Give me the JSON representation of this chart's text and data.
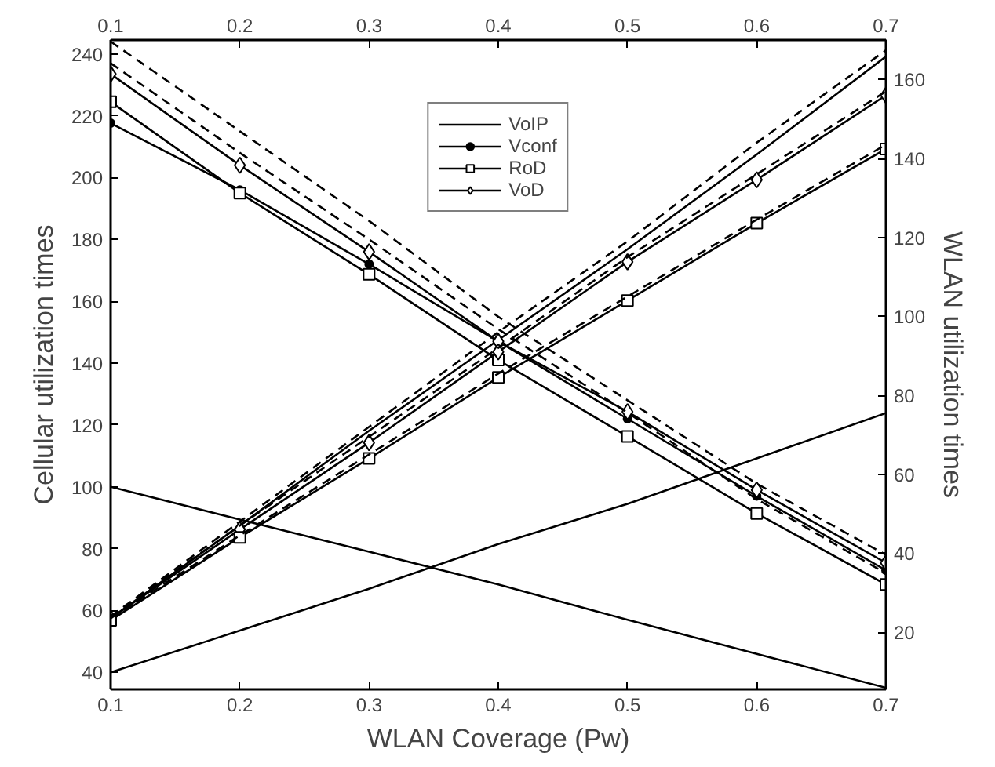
{
  "chart_data": {
    "type": "line",
    "xlabel": "WLAN Coverage (Pw)",
    "ylabel": "Cellular utilization times",
    "y2label": "WLAN utilization times",
    "x": [
      0.1,
      0.2,
      0.3,
      0.4,
      0.5,
      0.6,
      0.7
    ],
    "xlim": [
      0.1,
      0.7
    ],
    "xticks": [
      0.1,
      0.2,
      0.3,
      0.4,
      0.5,
      0.6,
      0.7
    ],
    "x2lim": [
      0.1,
      0.7
    ],
    "x2ticks": [
      0.1,
      0.2,
      0.3,
      0.4,
      0.5,
      0.6,
      0.7
    ],
    "ylim": [
      34.5,
      244.5
    ],
    "yticks": [
      40,
      60,
      80,
      100,
      120,
      140,
      160,
      180,
      200,
      220,
      240
    ],
    "y2lim": [
      5.5,
      170
    ],
    "y2ticks": [
      20,
      40,
      60,
      80,
      100,
      120,
      140,
      160
    ],
    "grid": false,
    "legend": "top",
    "series": [
      {
        "name": "VoIP",
        "color": "#000000",
        "marker": "none",
        "line_style": "solid",
        "axis": "y2",
        "values": [
          23.5,
          47,
          71,
          94,
          117,
          141,
          165.8
        ]
      },
      {
        "name": "Vconf",
        "color": "#000000",
        "marker": "circle",
        "line_style": "solid",
        "values": [
          217.6,
          196,
          172,
          147,
          122,
          97,
          73
        ]
      },
      {
        "name": "RoD",
        "color": "#000000",
        "marker": "square",
        "line_style": "solid",
        "values": [
          224.5,
          195,
          168.7,
          141,
          116.3,
          91.4,
          68.4
        ]
      },
      {
        "name": "VoD",
        "color": "#000000",
        "marker": "diamond",
        "line_style": "solid",
        "values": [
          233.5,
          204,
          176,
          147,
          124.3,
          99,
          75.4
        ]
      },
      {
        "color": "#000000",
        "marker": "none",
        "line_style": "solid",
        "values": [
          100,
          89.4,
          79,
          68.4,
          57,
          46,
          35
        ]
      },
      {
        "color": "#000000",
        "marker": "none",
        "line_style": "solid",
        "axis": "y2",
        "values": [
          9.8,
          20.4,
          31,
          42.3,
          52.5,
          64,
          75.5
        ]
      },
      {
        "color": "#000000",
        "marker": "diamond",
        "line_style": "solid",
        "axis": "y2",
        "values": [
          23.5,
          46,
          68,
          91,
          113.8,
          134.6,
          156
        ]
      },
      {
        "color": "#000000",
        "marker": "square",
        "line_style": "solid",
        "axis": "y2",
        "values": [
          23,
          44,
          64,
          84.5,
          104,
          123.6,
          142.4
        ]
      },
      {
        "color": "#000000",
        "marker": "none",
        "line_style": "dashed",
        "axis": "y2",
        "values": [
          24,
          48,
          72,
          96,
          119,
          144,
          167.4
        ]
      },
      {
        "color": "#000000",
        "marker": "none",
        "line_style": "dashed",
        "axis": "y2",
        "values": [
          24,
          47,
          69.5,
          92,
          115,
          136,
          157
        ]
      },
      {
        "color": "#000000",
        "marker": "none",
        "line_style": "dashed",
        "axis": "y2",
        "values": [
          23.5,
          44.5,
          65,
          85.5,
          105,
          124.5,
          143.5
        ]
      },
      {
        "color": "#000000",
        "marker": "none",
        "line_style": "dashed",
        "values": [
          244,
          215,
          186,
          155,
          128,
          101,
          78
        ]
      },
      {
        "color": "#000000",
        "marker": "none",
        "line_style": "dashed",
        "values": [
          237,
          208,
          180,
          151,
          124,
          96,
          72
        ]
      }
    ]
  }
}
